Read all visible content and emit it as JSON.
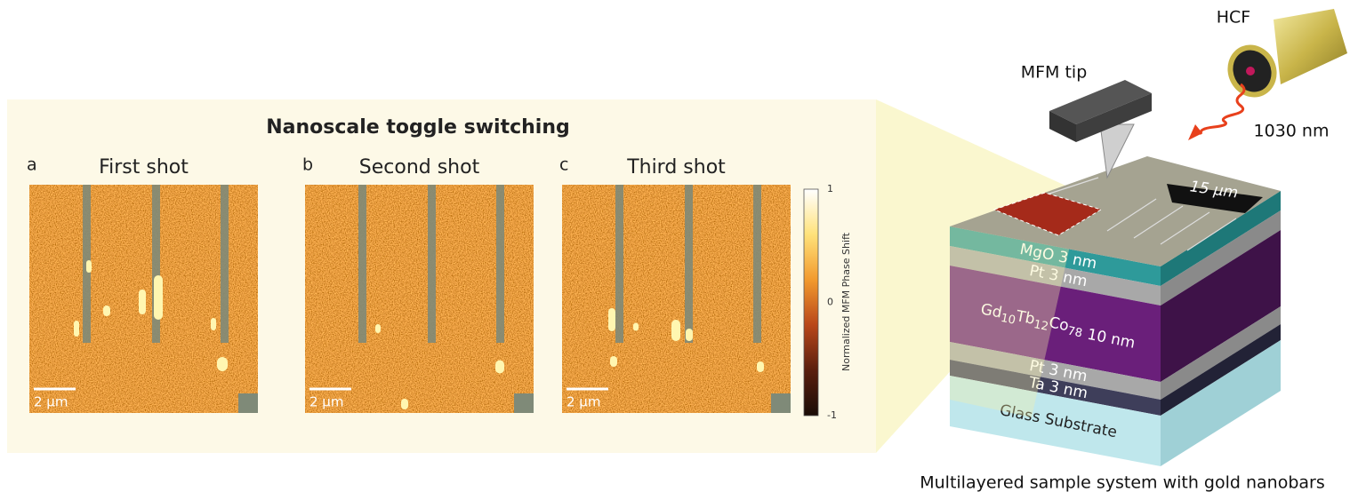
{
  "left_panel": {
    "title": "Nanoscale toggle switching",
    "panels": [
      {
        "letter": "a",
        "title": "First shot",
        "scale_bar": "2 µm"
      },
      {
        "letter": "b",
        "title": "Second shot",
        "scale_bar": "2 µm"
      },
      {
        "letter": "c",
        "title": "Third shot",
        "scale_bar": "2 µm"
      }
    ],
    "colorbar": {
      "label": "Normalized MFM Phase Shift",
      "ticks": [
        1,
        0,
        -1
      ]
    }
  },
  "sample": {
    "hcf": "HCF",
    "tip": "MFM tip",
    "wavelength": "1030 nm",
    "scale_bar": "15 µm",
    "layers": [
      {
        "label": "MgO 3 nm"
      },
      {
        "label": "Pt 3 nm"
      },
      {
        "parts": [
          "Gd",
          "10",
          "Tb",
          "12",
          "Co",
          "78"
        ],
        "thickness": "10 nm"
      },
      {
        "label": "Pt 3 nm"
      },
      {
        "label": "Ta 3 nm"
      },
      {
        "label": "Glass Substrate"
      }
    ],
    "caption": "Multilayered sample system with gold nanobars"
  }
}
